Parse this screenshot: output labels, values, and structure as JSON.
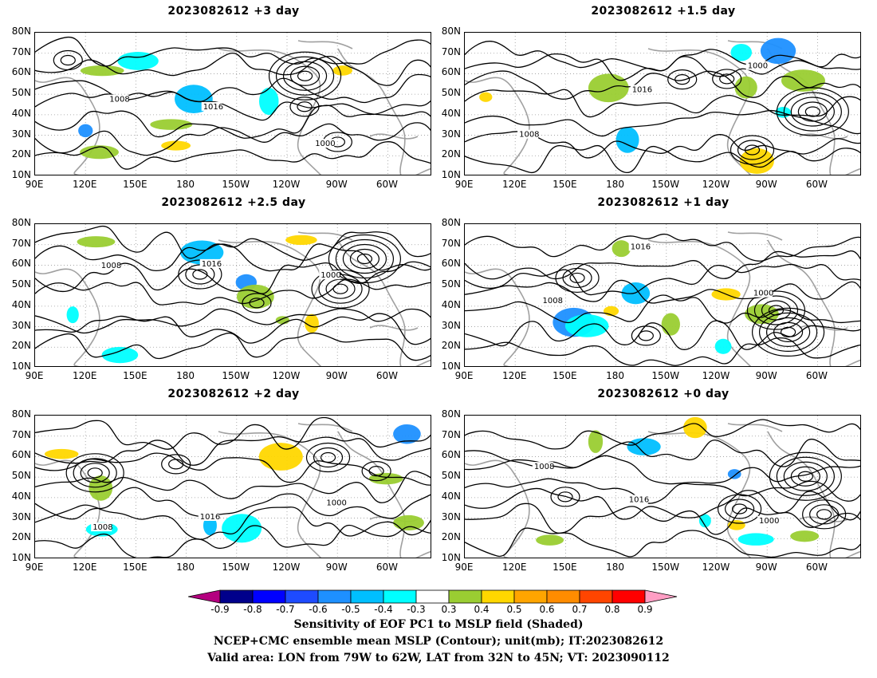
{
  "panels": [
    {
      "title": "2023082612 +3 day"
    },
    {
      "title": "2023082612 +1.5 day"
    },
    {
      "title": "2023082612 +2.5 day"
    },
    {
      "title": "2023082612 +1 day"
    },
    {
      "title": "2023082612 +2 day"
    },
    {
      "title": "2023082612 +0 day"
    }
  ],
  "lat_labels": [
    "80N",
    "70N",
    "60N",
    "50N",
    "40N",
    "30N",
    "20N",
    "10N"
  ],
  "lon_labels": [
    "90E",
    "120E",
    "150E",
    "180",
    "150W",
    "120W",
    "90W",
    "60W"
  ],
  "contour_labels": [
    "1008",
    "1016",
    "1000"
  ],
  "colorbar": {
    "colors": [
      "#b4007f",
      "#00008b",
      "#0000ff",
      "#1e4bff",
      "#1e90ff",
      "#00bfff",
      "#00ffff",
      "#ffffff",
      "#9acd32",
      "#ffd700",
      "#ffa500",
      "#ff8c00",
      "#ff4500",
      "#ff0000",
      "#ff9ec4"
    ],
    "ticks": [
      "-0.9",
      "-0.8",
      "-0.7",
      "-0.6",
      "-0.5",
      "-0.4",
      "-0.3",
      "0.3",
      "0.4",
      "0.5",
      "0.6",
      "0.7",
      "0.8",
      "0.9"
    ]
  },
  "footer": {
    "line1": "Sensitivity of EOF PC1 to MSLP field (Shaded)",
    "line2": "NCEP+CMC ensemble mean MSLP (Contour); unit(mb); IT:2023082612",
    "line3": "Valid area: LON from 79W to 62W, LAT from 32N to 45N; VT: 2023090112"
  }
}
